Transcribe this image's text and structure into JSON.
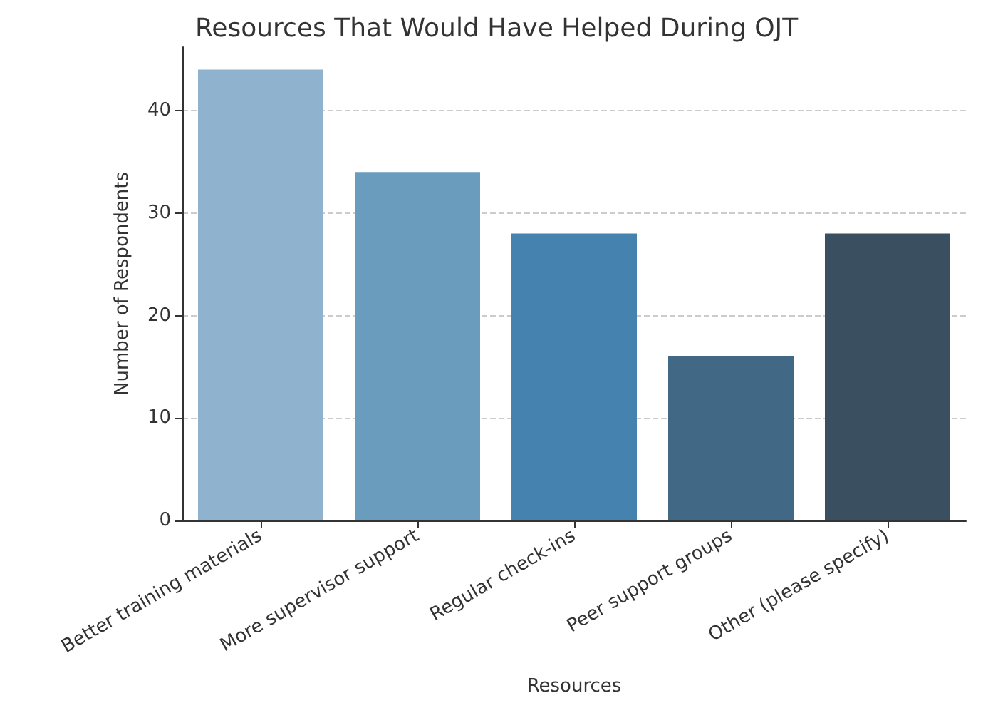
{
  "chart_data": {
    "type": "bar",
    "title": "Resources That Would Have Helped During OJT",
    "xlabel": "Resources",
    "ylabel": "Number of Respondents",
    "categories": [
      "Better training materials",
      "More supervisor support",
      "Regular check-ins",
      "Peer support groups",
      "Other (please specify)"
    ],
    "values": [
      44,
      34,
      28,
      16,
      28
    ],
    "colors": [
      "#8fb3cf",
      "#6a9cbe",
      "#4682b0",
      "#416884",
      "#3a4f60"
    ],
    "ylim": [
      0,
      46.2
    ],
    "yticks": [
      0,
      10,
      20,
      30,
      40
    ],
    "grid": "y"
  }
}
